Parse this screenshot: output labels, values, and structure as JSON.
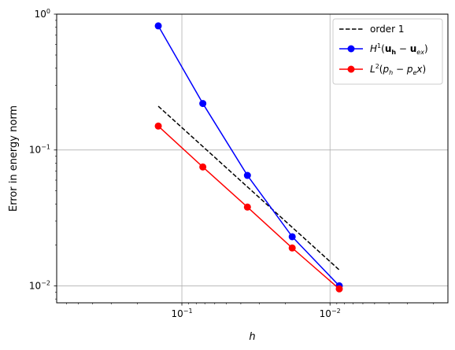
{
  "chart_data": {
    "type": "line",
    "xlabel": "h",
    "ylabel": "Error in energy norm",
    "xscale": "log",
    "yscale": "log",
    "x_axis_inverted": true,
    "xlim": [
      0.7,
      0.0016
    ],
    "ylim": [
      0.0075,
      1.0
    ],
    "grid": true,
    "legend_position": "top-right",
    "x_ticks": [
      {
        "value": 0.1,
        "base": "10",
        "exp": "−1"
      },
      {
        "value": 0.01,
        "base": "10",
        "exp": "−2"
      }
    ],
    "y_ticks": [
      {
        "value": 1.0,
        "base": "10",
        "exp": "0"
      },
      {
        "value": 0.1,
        "base": "10",
        "exp": "−1"
      },
      {
        "value": 0.01,
        "base": "10",
        "exp": "−2"
      }
    ],
    "series": [
      {
        "name": "order 1",
        "color": "#000000",
        "style": "dashed",
        "marker": "none",
        "x": [
          0.1443,
          0.00866
        ],
        "y": [
          0.21,
          0.0131
        ]
      },
      {
        "name": "H^1(u_h - u_ex)",
        "color": "#0000ff",
        "style": "solid",
        "marker": "circle",
        "x": [
          0.1443,
          0.0722,
          0.0361,
          0.018,
          0.00866
        ],
        "y": [
          0.82,
          0.22,
          0.065,
          0.023,
          0.01
        ]
      },
      {
        "name": "L^2(p_h - p_e x)",
        "color": "#ff0000",
        "style": "solid",
        "marker": "circle",
        "x": [
          0.1443,
          0.0722,
          0.0361,
          0.018,
          0.00866
        ],
        "y": [
          0.15,
          0.075,
          0.038,
          0.019,
          0.0095
        ]
      }
    ]
  }
}
